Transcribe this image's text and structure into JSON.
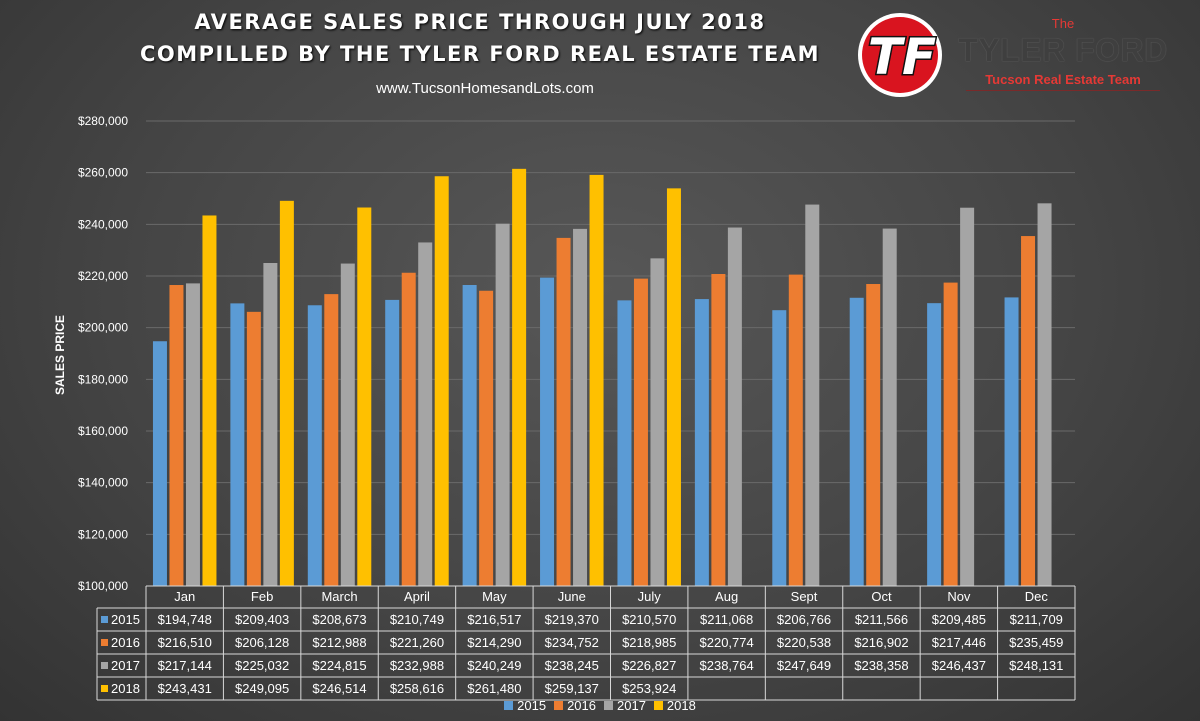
{
  "header": {
    "title_line1": "AVERAGE SALES PRICE THROUGH JULY 2018",
    "title_line2": "COMPILLED BY THE TYLER FORD REAL ESTATE TEAM",
    "website": "www.TucsonHomesandLots.com"
  },
  "brand": {
    "logo_text": "TF",
    "the": "The",
    "name": "TYLER FORD",
    "tagline": "Tucson Real Estate Team"
  },
  "colors": {
    "2015": "#5b9bd5",
    "2016": "#ed7d31",
    "2017": "#a5a5a5",
    "2018": "#ffc000",
    "logo_red": "#d9141f"
  },
  "chart_data": {
    "type": "bar",
    "title": "AVERAGE SALES PRICE THROUGH JULY 2018",
    "ylabel": "SALES PRICE",
    "xlabel": "",
    "ylim": [
      100000,
      280000
    ],
    "ytick_step": 20000,
    "yticks": [
      "$100,000",
      "$120,000",
      "$140,000",
      "$160,000",
      "$180,000",
      "$200,000",
      "$220,000",
      "$240,000",
      "$260,000",
      "$280,000"
    ],
    "grid": true,
    "legend_position": "bottom",
    "data_table": true,
    "categories": [
      "Jan",
      "Feb",
      "March",
      "April",
      "May",
      "June",
      "July",
      "Aug",
      "Sept",
      "Oct",
      "Nov",
      "Dec"
    ],
    "series": [
      {
        "name": "2015",
        "values": [
          194748,
          209403,
          208673,
          210749,
          216517,
          219370,
          210570,
          211068,
          206766,
          211566,
          209485,
          211709
        ],
        "labels": [
          "$194,748",
          "$209,403",
          "$208,673",
          "$210,749",
          "$216,517",
          "$219,370",
          "$210,570",
          "$211,068",
          "$206,766",
          "$211,566",
          "$209,485",
          "$211,709"
        ]
      },
      {
        "name": "2016",
        "values": [
          216510,
          206128,
          212988,
          221260,
          214290,
          234752,
          218985,
          220774,
          220538,
          216902,
          217446,
          235459
        ],
        "labels": [
          "$216,510",
          "$206,128",
          "$212,988",
          "$221,260",
          "$214,290",
          "$234,752",
          "$218,985",
          "$220,774",
          "$220,538",
          "$216,902",
          "$217,446",
          "$235,459"
        ]
      },
      {
        "name": "2017",
        "values": [
          217144,
          225032,
          224815,
          232988,
          240249,
          238245,
          226827,
          238764,
          247649,
          238358,
          246437,
          248131
        ],
        "labels": [
          "$217,144",
          "$225,032",
          "$224,815",
          "$232,988",
          "$240,249",
          "$238,245",
          "$226,827",
          "$238,764",
          "$247,649",
          "$238,358",
          "$246,437",
          "$248,131"
        ]
      },
      {
        "name": "2018",
        "values": [
          243431,
          249095,
          246514,
          258616,
          261480,
          259137,
          253924,
          null,
          null,
          null,
          null,
          null
        ],
        "labels": [
          "$243,431",
          "$249,095",
          "$246,514",
          "$258,616",
          "$261,480",
          "$259,137",
          "$253,924",
          "",
          "",
          "",
          "",
          ""
        ]
      }
    ]
  }
}
